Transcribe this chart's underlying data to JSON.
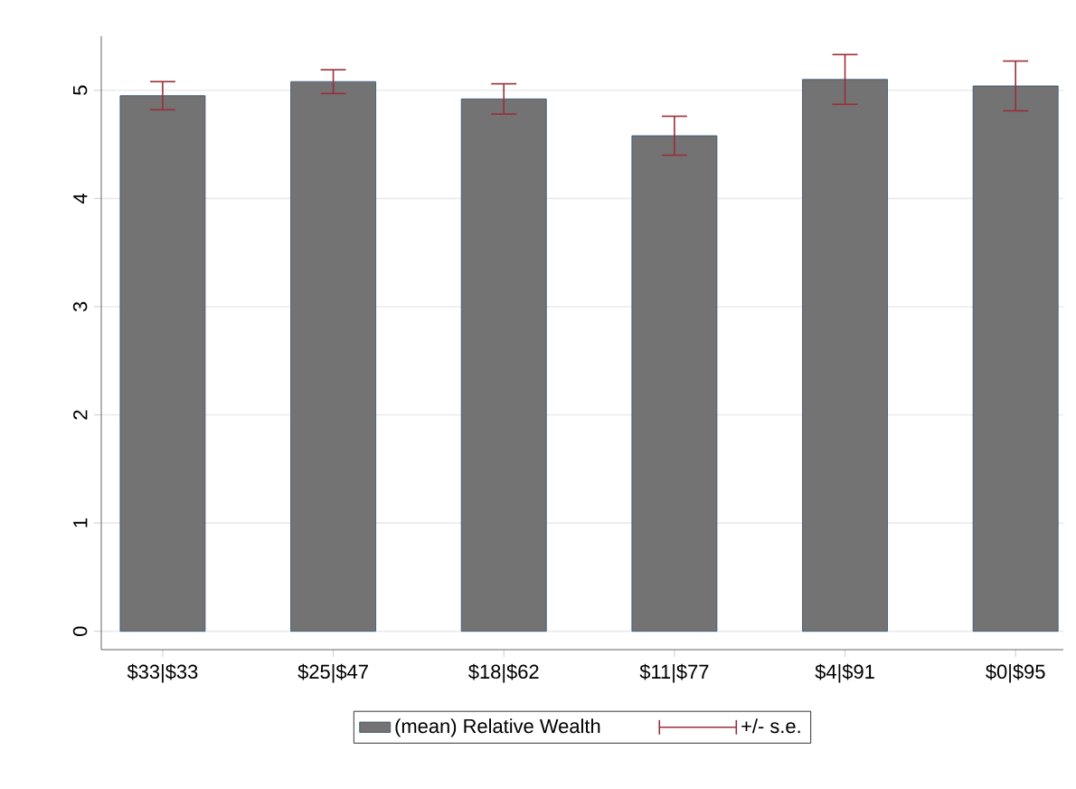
{
  "chart_data": {
    "type": "bar",
    "categories": [
      "$33|$33",
      "$25|$47",
      "$18|$62",
      "$11|$77",
      "$4|$91",
      "$0|$95"
    ],
    "series": [
      {
        "name": "(mean) Relative Wealth",
        "color": "#737373",
        "values": [
          4.95,
          5.08,
          4.92,
          4.58,
          5.1,
          5.04
        ],
        "errors": [
          0.13,
          0.11,
          0.14,
          0.18,
          0.23,
          0.23
        ]
      }
    ],
    "annotations": [
      "+/- s.e."
    ],
    "ylim": [
      -0.17,
      5.5
    ],
    "yticks": [
      0,
      1,
      2,
      3,
      4,
      5
    ],
    "grid": "y",
    "legend": "bottom"
  }
}
